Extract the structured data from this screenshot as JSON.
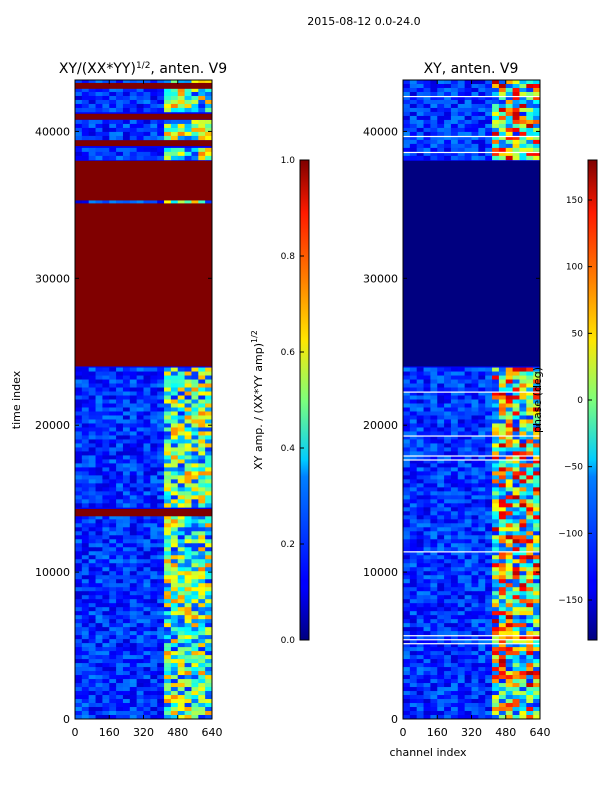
{
  "figure": {
    "suptitle": "2015-08-12 0.0-24.0"
  },
  "chart_data": [
    {
      "type": "heatmap",
      "title_main": "XY/(XX*YY)",
      "title_sup": "1/2",
      "title_tail": ", anten. V9",
      "xlabel": "",
      "ylabel": "time index",
      "xlim": [
        0,
        640
      ],
      "ylim": [
        0,
        43500
      ],
      "xticks": [
        0,
        160,
        320,
        480,
        640
      ],
      "yticks": [
        0,
        10000,
        20000,
        30000,
        40000
      ],
      "colorbar": {
        "label_main": "XY amp. / (XX*YY amp)",
        "label_sup": "1/2",
        "ticks": [
          "0.0",
          "0.2",
          "0.4",
          "0.6",
          "0.8",
          "1.0"
        ],
        "tick_values": [
          0.0,
          0.2,
          0.4,
          0.6,
          0.8,
          1.0
        ],
        "range": [
          0.0,
          1.0
        ]
      },
      "bands": [
        {
          "y0": 24000,
          "y1": 35100,
          "value": 1.0
        },
        {
          "y0": 35300,
          "y1": 38000,
          "value": 1.0
        },
        {
          "y0": 13800,
          "y1": 14300,
          "value": 1.0
        },
        {
          "y0": 40800,
          "y1": 41200,
          "value": 1.0
        },
        {
          "y0": 39000,
          "y1": 39400,
          "value": 1.0
        },
        {
          "y0": 42900,
          "y1": 43300,
          "value": 1.0
        }
      ],
      "structured_channels": [
        400,
        600
      ]
    },
    {
      "type": "heatmap",
      "title_main": "XY, anten. V9",
      "xlabel": "channel index",
      "ylabel": "",
      "xlim": [
        0,
        640
      ],
      "ylim": [
        0,
        43500
      ],
      "xticks": [
        0,
        160,
        320,
        480,
        640
      ],
      "yticks": [
        0,
        10000,
        20000,
        30000,
        40000
      ],
      "colorbar": {
        "label_main": "phase (deg)",
        "ticks": [
          "−150",
          "−100",
          "−50",
          "0",
          "50",
          "100",
          "150"
        ],
        "tick_values": [
          -150,
          -100,
          -50,
          0,
          50,
          100,
          150
        ],
        "range": [
          -180,
          180
        ]
      },
      "bands": [
        {
          "y0": 24000,
          "y1": 38000,
          "value": -180
        }
      ],
      "structured_channels": [
        400,
        640
      ]
    }
  ]
}
